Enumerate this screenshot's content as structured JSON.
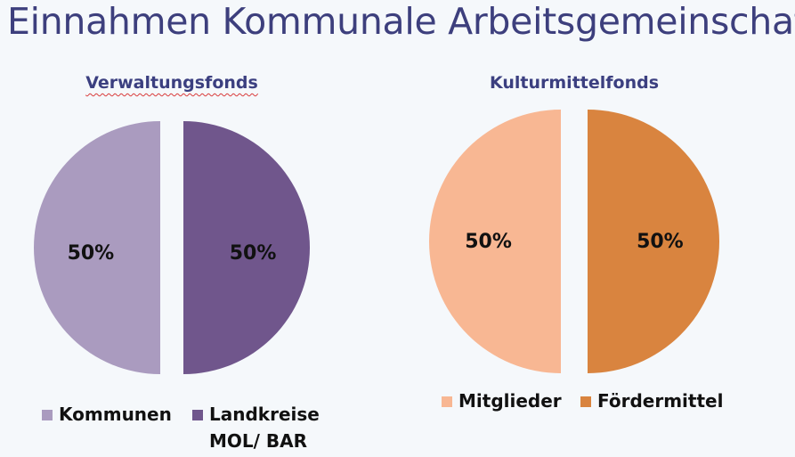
{
  "title": "Einnahmen Kommunale Arbeitsgemeinschaft",
  "chart_data": [
    {
      "type": "pie",
      "title": "Verwaltungsfonds",
      "slices": [
        {
          "label": "Kommunen",
          "value": 50,
          "display": "50%",
          "color": "#aa9bbf"
        },
        {
          "label": "Landkreise MOL/ BAR",
          "value": 50,
          "display": "50%",
          "color": "#70568c"
        }
      ],
      "legend": {
        "position": "bottom",
        "entries": [
          "Kommunen",
          "Landkreise",
          "MOL/ BAR"
        ]
      }
    },
    {
      "type": "pie",
      "title": "Kulturmittelfonds",
      "slices": [
        {
          "label": "Mitglieder",
          "value": 50,
          "display": "50%",
          "color": "#f8b793"
        },
        {
          "label": "Fördermittel",
          "value": 50,
          "display": "50%",
          "color": "#d9843f"
        }
      ],
      "legend": {
        "position": "bottom",
        "entries": [
          "Mitglieder",
          "Fördermittel"
        ]
      }
    }
  ]
}
